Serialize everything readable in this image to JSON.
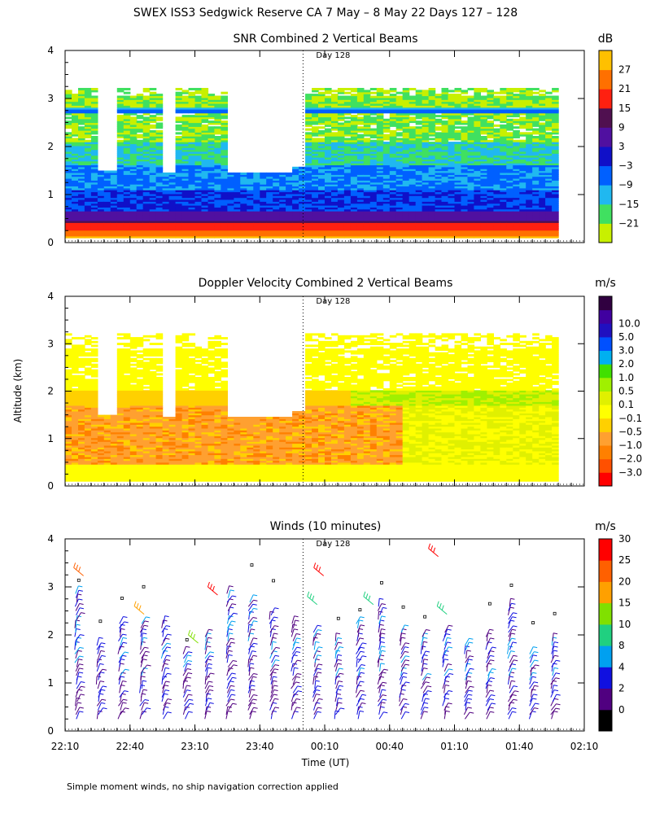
{
  "main_title": "SWEX ISS3 Sedgwick Reserve CA   7 May –  8 May 22 Days 127 – 128",
  "ylabel": "Altitude (km)",
  "xlabel": "Time (UT)",
  "footnote": "Simple moment winds, no ship navigation correction applied",
  "day_marker": {
    "label": "Day 128",
    "time": "00:00"
  },
  "x_ticks": [
    "22:10",
    "22:40",
    "23:10",
    "23:40",
    "00:10",
    "00:40",
    "01:10",
    "01:40",
    "02:10"
  ],
  "y_ticks": [
    "0",
    "1",
    "2",
    "3",
    "4"
  ],
  "colors": {
    "snr": [
      "#c8f000",
      "#40e060",
      "#20b8f0",
      "#0060ff",
      "#1010c8",
      "#5010a0",
      "#501050",
      "#ff2010",
      "#ff7000",
      "#ffc000"
    ],
    "doppler": [
      "#ff0000",
      "#ff5000",
      "#ff8000",
      "#ffa030",
      "#ffd000",
      "#ffff00",
      "#e0f000",
      "#a0f000",
      "#40e000",
      "#00b0f0",
      "#0050ff",
      "#2010c0",
      "#4000a0",
      "#300040"
    ],
    "winds": [
      "#000000",
      "#500080",
      "#1010e0",
      "#00a0f0",
      "#20d080",
      "#80e000",
      "#ffa000",
      "#ff6000",
      "#ff0000"
    ],
    "barb_dark": "#400060"
  },
  "chart_data": [
    {
      "type": "heatmap",
      "title": "SNR Combined 2 Vertical Beams",
      "colorbar_unit": "dB",
      "colorbar_labels": [
        "−21",
        "−15",
        "−9",
        "−3",
        "3",
        "9",
        "15",
        "21",
        "27"
      ],
      "ylim": [
        0,
        4
      ],
      "x_range": [
        "22:10",
        "02:10"
      ]
    },
    {
      "type": "heatmap",
      "title": "Doppler Velocity Combined 2 Vertical Beams",
      "colorbar_unit": "m/s",
      "colorbar_labels": [
        "−3.0",
        "−2.0",
        "−1.0",
        "−0.5",
        "−0.1",
        "0.1",
        "0.5",
        "1.0",
        "2.0",
        "3.0",
        "5.0",
        "10.0"
      ],
      "ylim": [
        0,
        4
      ],
      "x_range": [
        "22:10",
        "02:10"
      ]
    },
    {
      "type": "scatter",
      "title": "Winds (10 minutes)",
      "colorbar_unit": "m/s",
      "colorbar_labels": [
        "0",
        "2",
        "4",
        "8",
        "10",
        "15",
        "20",
        "25",
        "30"
      ],
      "ylim": [
        0,
        4
      ],
      "x_range": [
        "22:10",
        "02:10"
      ]
    }
  ]
}
